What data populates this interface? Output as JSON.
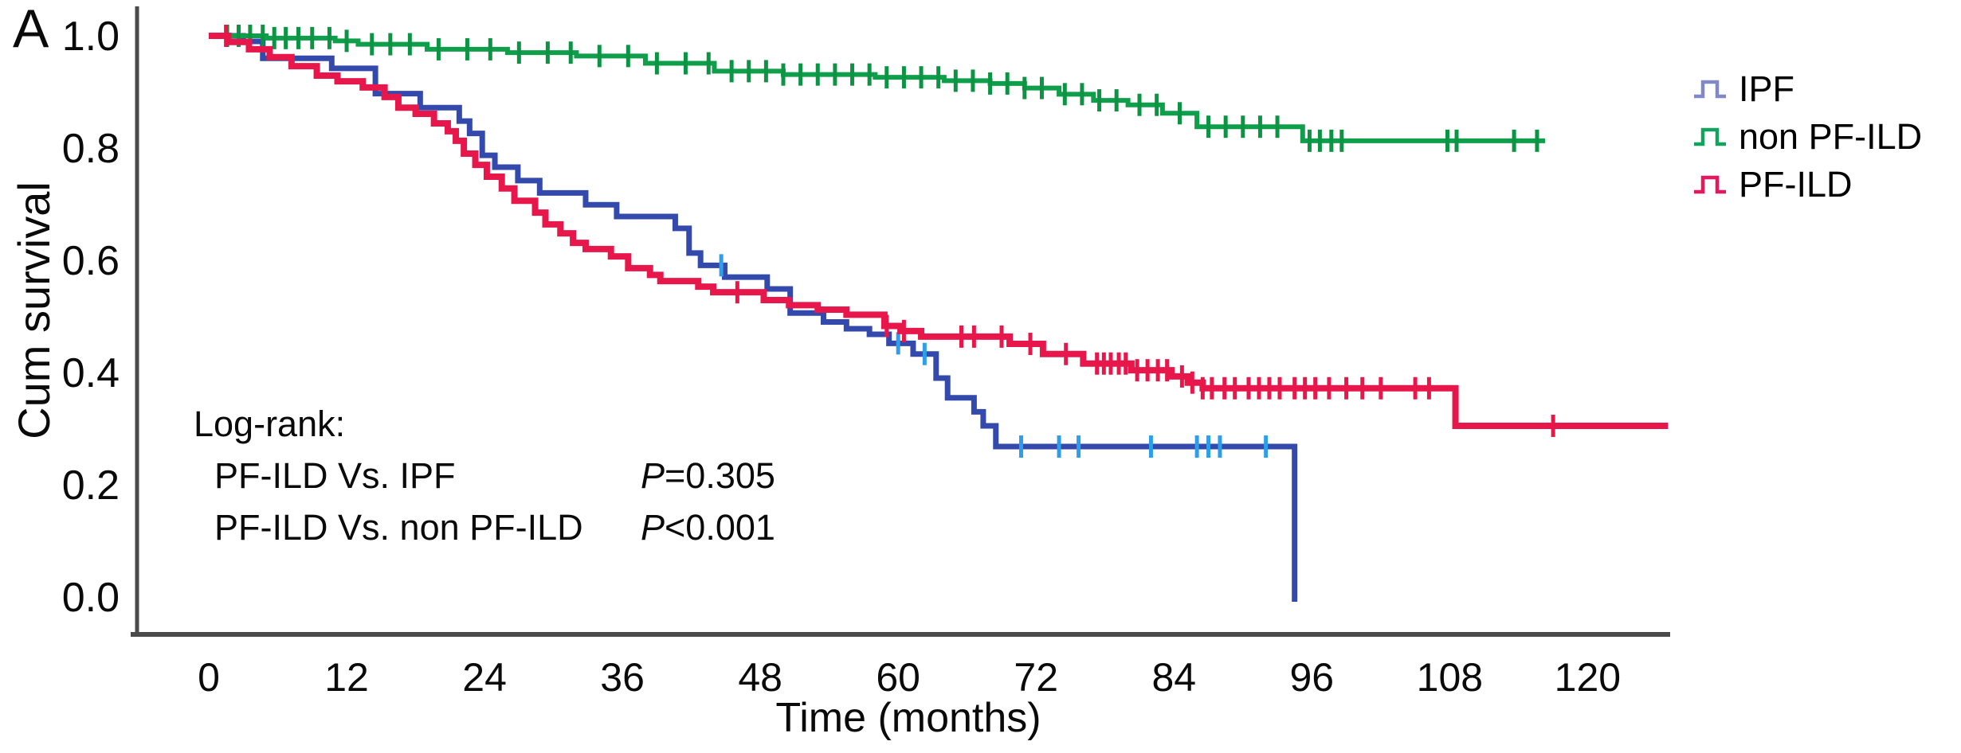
{
  "panel_label": "A",
  "chart_data": {
    "type": "line",
    "variant": "kaplan-meier-step",
    "title": "",
    "xlabel": "Time (months)",
    "ylabel": "Cum survival",
    "xlim": [
      0,
      127
    ],
    "ylim": [
      0.0,
      1.0
    ],
    "grid": false,
    "legend_position": "outside-right",
    "xticks": [
      {
        "value": 0,
        "label": "0"
      },
      {
        "value": 12,
        "label": "12"
      },
      {
        "value": 24,
        "label": "24"
      },
      {
        "value": 36,
        "label": "36"
      },
      {
        "value": 48,
        "label": "48"
      },
      {
        "value": 60,
        "label": "60"
      },
      {
        "value": 72,
        "label": "72"
      },
      {
        "value": 84,
        "label": "84"
      },
      {
        "value": 96,
        "label": "96"
      },
      {
        "value": 108,
        "label": "108"
      },
      {
        "value": 120,
        "label": "120"
      }
    ],
    "yticks": [
      {
        "value": 0.0,
        "label": "0.0"
      },
      {
        "value": 0.2,
        "label": "0.2"
      },
      {
        "value": 0.4,
        "label": "0.4"
      },
      {
        "value": 0.6,
        "label": "0.6"
      },
      {
        "value": 0.8,
        "label": "0.8"
      },
      {
        "value": 1.0,
        "label": "1.0"
      }
    ],
    "axis_color": "#4a4a4a",
    "series": [
      {
        "name": "IPF",
        "slug": "ipf",
        "color": "#3449ac",
        "legend_color": "#8089c6",
        "censor_color": "#2e9ee8",
        "drop_to_zero": true,
        "end_time": 94.5,
        "steps": [
          [
            0,
            1.0
          ],
          [
            3,
            0.99
          ],
          [
            4.7,
            0.96
          ],
          [
            10.7,
            0.942
          ],
          [
            14.5,
            0.897
          ],
          [
            18.4,
            0.872
          ],
          [
            21.8,
            0.848
          ],
          [
            22.7,
            0.826
          ],
          [
            23.8,
            0.787
          ],
          [
            24.9,
            0.766
          ],
          [
            26.9,
            0.742
          ],
          [
            28.8,
            0.72
          ],
          [
            32.8,
            0.699
          ],
          [
            35.5,
            0.678
          ],
          [
            40.6,
            0.657
          ],
          [
            41.8,
            0.613
          ],
          [
            42.8,
            0.591
          ],
          [
            44.9,
            0.57
          ],
          [
            48.6,
            0.549
          ],
          [
            50.6,
            0.506
          ],
          [
            53.5,
            0.49
          ],
          [
            55.5,
            0.478
          ],
          [
            57.5,
            0.468
          ],
          [
            59.2,
            0.452
          ],
          [
            61.3,
            0.433
          ],
          [
            63.3,
            0.39
          ],
          [
            64.3,
            0.355
          ],
          [
            66.6,
            0.33
          ],
          [
            67.4,
            0.305
          ],
          [
            68.5,
            0.268
          ]
        ],
        "censor_times": [
          44.6,
          60,
          62.3,
          70.7,
          74,
          75.7,
          82,
          86,
          87,
          88,
          92
        ]
      },
      {
        "name": "non PF-ILD",
        "slug": "non-pf-ild",
        "color": "#0f9f4a",
        "legend_color": "#12a45c",
        "censor_color": "#0c9344",
        "drop_to_zero": false,
        "end_time": 116.3,
        "steps": [
          [
            0,
            1.0
          ],
          [
            5,
            0.996
          ],
          [
            11,
            0.991
          ],
          [
            13,
            0.985
          ],
          [
            19,
            0.976
          ],
          [
            26,
            0.97
          ],
          [
            32,
            0.964
          ],
          [
            38,
            0.951
          ],
          [
            44,
            0.937
          ],
          [
            50,
            0.931
          ],
          [
            58,
            0.926
          ],
          [
            64,
            0.92
          ],
          [
            68,
            0.915
          ],
          [
            71,
            0.907
          ],
          [
            74,
            0.896
          ],
          [
            77,
            0.885
          ],
          [
            80,
            0.877
          ],
          [
            83,
            0.862
          ],
          [
            86,
            0.838
          ],
          [
            95.2,
            0.813
          ]
        ],
        "censor_times": [
          1.6,
          2.6,
          3.6,
          4.7,
          5.7,
          6.7,
          7.8,
          9,
          10.5,
          12,
          14.2,
          15.8,
          17.5,
          20,
          22.5,
          24.5,
          27,
          29.5,
          31.5,
          34,
          36.5,
          39,
          41.5,
          43.5,
          45.5,
          47,
          48.5,
          50,
          51.5,
          53,
          54.5,
          56,
          57.5,
          59,
          60.5,
          62,
          63.5,
          65,
          66.5,
          68,
          69.5,
          71,
          72.5,
          74.5,
          76,
          77.5,
          79,
          81,
          82.5,
          84.5,
          87,
          88.5,
          90,
          91.5,
          93,
          95.8,
          96.7,
          97.7,
          98.6,
          107.8,
          108.6,
          113.6,
          115.6
        ]
      },
      {
        "name": "PF-ILD",
        "slug": "pf-ild",
        "color": "#e8174b",
        "legend_color": "#e7175d",
        "censor_color": "#e8174b",
        "drop_to_zero": false,
        "end_time": 127,
        "steps": [
          [
            0,
            1.0
          ],
          [
            1.7,
            0.989
          ],
          [
            3.5,
            0.976
          ],
          [
            5.3,
            0.962
          ],
          [
            7.2,
            0.946
          ],
          [
            9.4,
            0.929
          ],
          [
            11.2,
            0.919
          ],
          [
            13.4,
            0.908
          ],
          [
            15.3,
            0.891
          ],
          [
            16.5,
            0.872
          ],
          [
            18,
            0.861
          ],
          [
            19.6,
            0.844
          ],
          [
            20.8,
            0.83
          ],
          [
            21.5,
            0.813
          ],
          [
            22.2,
            0.79
          ],
          [
            23.2,
            0.77
          ],
          [
            24.2,
            0.749
          ],
          [
            25.5,
            0.728
          ],
          [
            26.6,
            0.706
          ],
          [
            28.4,
            0.685
          ],
          [
            29.3,
            0.664
          ],
          [
            30.6,
            0.648
          ],
          [
            31.7,
            0.631
          ],
          [
            32.8,
            0.62
          ],
          [
            35,
            0.607
          ],
          [
            36.5,
            0.586
          ],
          [
            38.4,
            0.574
          ],
          [
            39.3,
            0.563
          ],
          [
            42.6,
            0.553
          ],
          [
            43.9,
            0.543
          ],
          [
            48.3,
            0.529
          ],
          [
            50.5,
            0.52
          ],
          [
            53,
            0.512
          ],
          [
            55.5,
            0.503
          ],
          [
            58.8,
            0.483
          ],
          [
            60.2,
            0.474
          ],
          [
            62,
            0.464
          ],
          [
            69.7,
            0.451
          ],
          [
            72.6,
            0.433
          ],
          [
            76.1,
            0.416
          ],
          [
            80.3,
            0.404
          ],
          [
            83.8,
            0.393
          ],
          [
            85.2,
            0.382
          ],
          [
            86.5,
            0.372
          ],
          [
            108.5,
            0.305
          ]
        ],
        "censor_times": [
          1.5,
          46,
          59,
          60.5,
          65.5,
          66.6,
          69,
          71.5,
          74.6,
          77.3,
          77.9,
          78.5,
          79.2,
          79.8,
          80.8,
          81.7,
          82.6,
          83.4,
          84.7,
          85.6,
          86.5,
          87.3,
          88.4,
          89.3,
          90.5,
          91.4,
          92.3,
          93.2,
          94.5,
          95.4,
          96.3,
          97.5,
          99,
          100.4,
          102,
          105,
          106.2,
          117
        ]
      }
    ],
    "annotation": {
      "title": "Log-rank:",
      "rows": [
        {
          "label": "PF-ILD Vs. IPF",
          "p_symbol": "P",
          "p_rest": "=0.305"
        },
        {
          "label": "PF-ILD Vs. non PF-ILD",
          "p_symbol": "P",
          "p_rest": "<0.001"
        }
      ]
    }
  }
}
